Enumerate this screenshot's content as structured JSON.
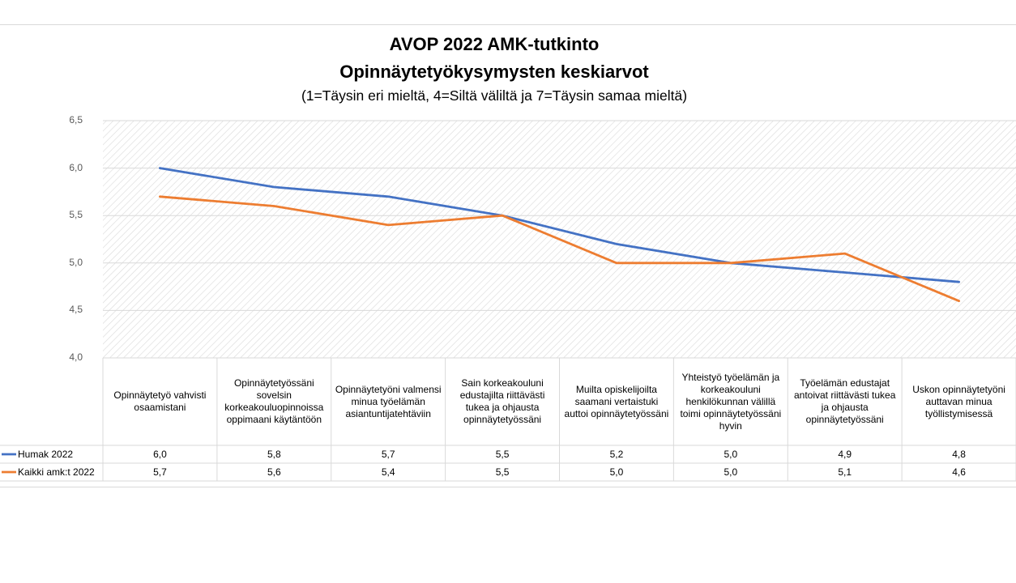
{
  "chart_data": {
    "type": "line",
    "title": "AVOP 2022 AMK-tutkinto",
    "subtitle": "Opinnäytetyökysymysten keskiarvot",
    "note": "(1=Täysin eri mieltä, 4=Siltä väliltä ja 7=Täysin samaa mieltä)",
    "ylim": [
      4.0,
      6.5
    ],
    "yticks": [
      "4,0",
      "4,5",
      "5,0",
      "5,5",
      "6,0",
      "6,5"
    ],
    "ytick_values": [
      4.0,
      4.5,
      5.0,
      5.5,
      6.0,
      6.5
    ],
    "categories": [
      "Opinnäytetyö vahvisti osaamistani",
      "Opinnäytetyössäni sovelsin korkeakouluopinnoissa oppimaani käytäntöön",
      "Opinnäytetyöni valmensi minua työelämän asiantuntijatehtäviin",
      "Sain korkeakouluni edustajilta riittävästi tukea ja ohjausta opinnäytetyössäni",
      "Muilta opiskelijoilta saamani vertaistuki auttoi opinnäytetyössäni",
      "Yhteistyö työelämän ja korkeakouluni henkilökunnan välillä toimi opinnäytetyössäni hyvin",
      "Työelämän edustajat antoivat riittävästi tukea ja ohjausta opinnäytetyössäni",
      "Uskon opinnäytetyöni auttavan minua työllistymisessä"
    ],
    "series": [
      {
        "name": "Humak 2022",
        "color": "#4472c4",
        "values": [
          6.0,
          5.8,
          5.7,
          5.5,
          5.2,
          5.0,
          4.9,
          4.8
        ],
        "labels": [
          "6,0",
          "5,8",
          "5,7",
          "5,5",
          "5,2",
          "5,0",
          "4,9",
          "4,8"
        ]
      },
      {
        "name": "Kaikki amk:t 2022",
        "color": "#ed7d31",
        "values": [
          5.7,
          5.6,
          5.4,
          5.5,
          5.0,
          5.0,
          5.1,
          4.6
        ],
        "labels": [
          "5,7",
          "5,6",
          "5,4",
          "5,5",
          "5,0",
          "5,0",
          "5,1",
          "4,6"
        ]
      }
    ],
    "grid": true,
    "legend": "data-table-left"
  }
}
